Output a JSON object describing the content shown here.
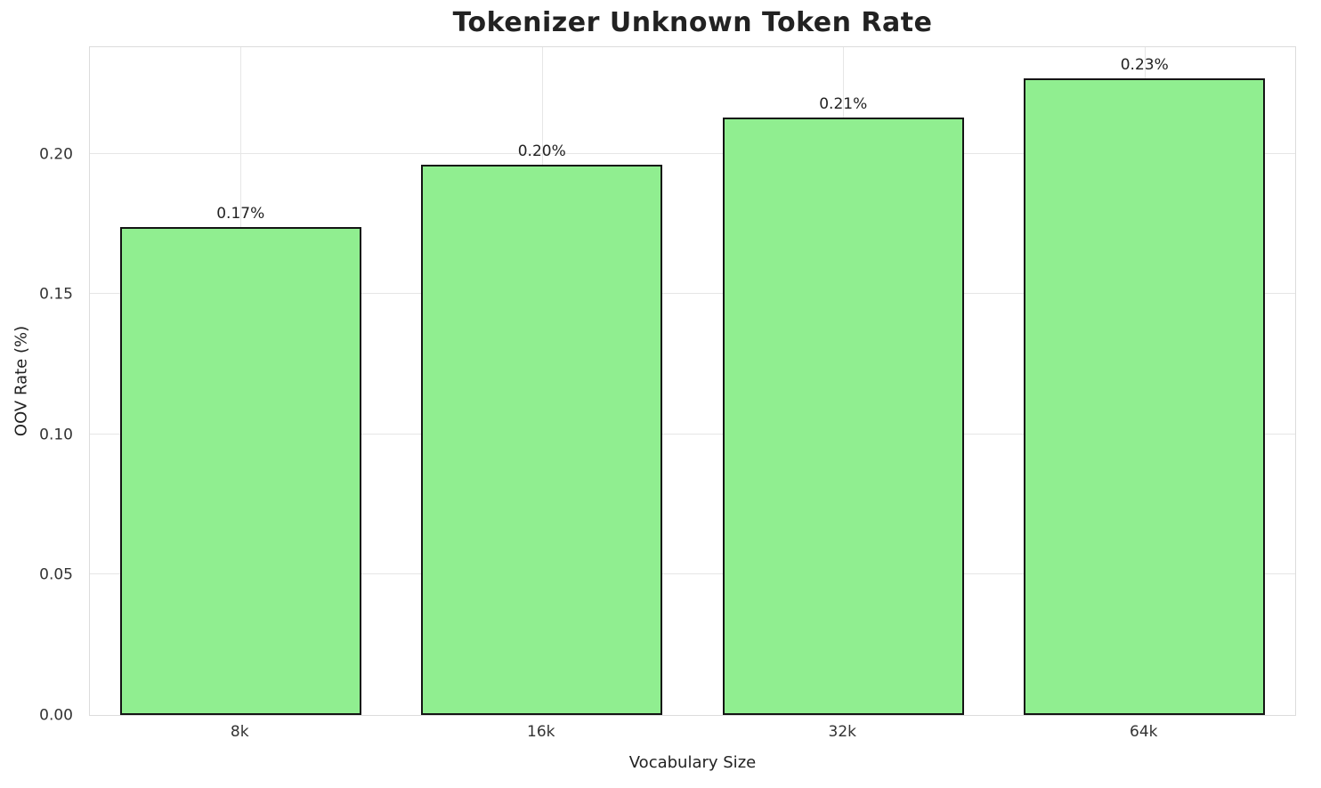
{
  "chart_data": {
    "type": "bar",
    "title": "Tokenizer Unknown Token Rate",
    "xlabel": "Vocabulary Size",
    "ylabel": "OOV Rate (%)",
    "categories": [
      "8k",
      "16k",
      "32k",
      "64k"
    ],
    "values": [
      0.174,
      0.196,
      0.213,
      0.227
    ],
    "bar_labels": [
      "0.17%",
      "0.20%",
      "0.21%",
      "0.23%"
    ],
    "ylim": [
      0,
      0.238
    ],
    "yticks": [
      0.0,
      0.05,
      0.1,
      0.15,
      0.2
    ],
    "ytick_labels": [
      "0.00",
      "0.05",
      "0.10",
      "0.15",
      "0.20"
    ],
    "grid": true,
    "legend": null,
    "bar_color": "#90EE90",
    "bar_edge_color": "#141414",
    "bar_width_fraction": 0.8
  }
}
